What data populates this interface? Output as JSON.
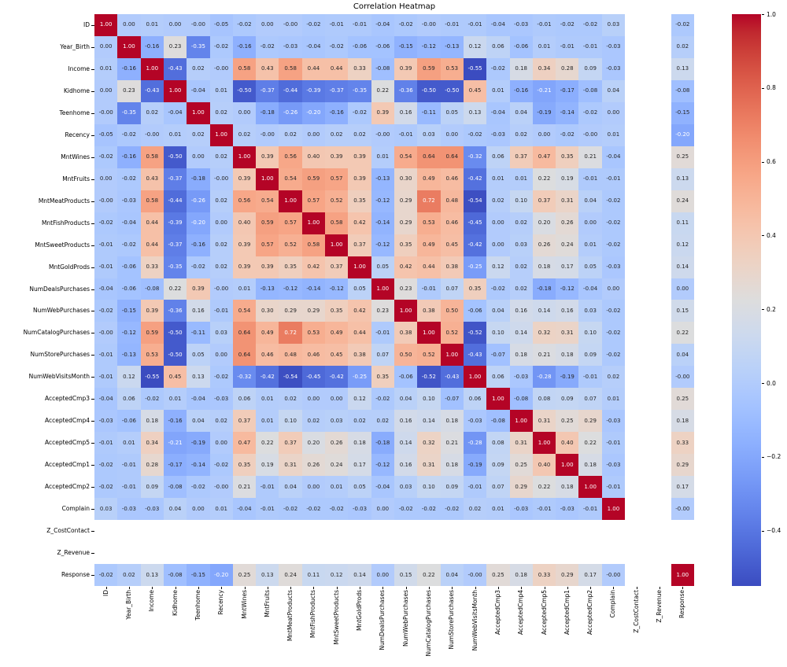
{
  "chart_data": {
    "type": "heatmap",
    "title": "Correlation Heatmap",
    "cell_format": ".2f",
    "categories": [
      "ID",
      "Year_Birth",
      "Income",
      "Kidhome",
      "Teenhome",
      "Recency",
      "MntWines",
      "MntFruits",
      "MntMeatProducts",
      "MntFishProducts",
      "MntSweetProducts",
      "MntGoldProds",
      "NumDealsPurchases",
      "NumWebPurchases",
      "NumCatalogPurchases",
      "NumStorePurchases",
      "NumWebVisitsMonth",
      "AcceptedCmp3",
      "AcceptedCmp4",
      "AcceptedCmp5",
      "AcceptedCmp1",
      "AcceptedCmp2",
      "Complain",
      "Z_CostContact",
      "Z_Revenue",
      "Response"
    ],
    "empty_rows": [
      "Z_CostContact",
      "Z_Revenue"
    ],
    "values": [
      [
        "1.00",
        "0.00",
        "0.01",
        "0.00",
        "-0.00",
        "-0.05",
        "-0.02",
        "0.00",
        "-0.00",
        "-0.02",
        "-0.01",
        "-0.01",
        "-0.04",
        "-0.02",
        "-0.00",
        "-0.01",
        "-0.01",
        "-0.04",
        "-0.03",
        "-0.01",
        "-0.02",
        "-0.02",
        "0.03",
        null,
        null,
        "-0.02"
      ],
      [
        "0.00",
        "1.00",
        "-0.16",
        "0.23",
        "-0.35",
        "-0.02",
        "-0.16",
        "-0.02",
        "-0.03",
        "-0.04",
        "-0.02",
        "-0.06",
        "-0.06",
        "-0.15",
        "-0.12",
        "-0.13",
        "0.12",
        "0.06",
        "-0.06",
        "0.01",
        "-0.01",
        "-0.01",
        "-0.03",
        null,
        null,
        "0.02"
      ],
      [
        "0.01",
        "-0.16",
        "1.00",
        "-0.43",
        "0.02",
        "-0.00",
        "0.58",
        "0.43",
        "0.58",
        "0.44",
        "0.44",
        "0.33",
        "-0.08",
        "0.39",
        "0.59",
        "0.53",
        "-0.55",
        "-0.02",
        "0.18",
        "0.34",
        "0.28",
        "0.09",
        "-0.03",
        null,
        null,
        "0.13"
      ],
      [
        "0.00",
        "0.23",
        "-0.43",
        "1.00",
        "-0.04",
        "0.01",
        "-0.50",
        "-0.37",
        "-0.44",
        "-0.39",
        "-0.37",
        "-0.35",
        "0.22",
        "-0.36",
        "-0.50",
        "-0.50",
        "0.45",
        "0.01",
        "-0.16",
        "-0.21",
        "-0.17",
        "-0.08",
        "0.04",
        null,
        null,
        "-0.08"
      ],
      [
        "-0.00",
        "-0.35",
        "0.02",
        "-0.04",
        "1.00",
        "0.02",
        "0.00",
        "-0.18",
        "-0.26",
        "-0.20",
        "-0.16",
        "-0.02",
        "0.39",
        "0.16",
        "-0.11",
        "0.05",
        "0.13",
        "-0.04",
        "0.04",
        "-0.19",
        "-0.14",
        "-0.02",
        "0.00",
        null,
        null,
        "-0.15"
      ],
      [
        "-0.05",
        "-0.02",
        "-0.00",
        "0.01",
        "0.02",
        "1.00",
        "0.02",
        "-0.00",
        "0.02",
        "0.00",
        "0.02",
        "0.02",
        "-0.00",
        "-0.01",
        "0.03",
        "0.00",
        "-0.02",
        "-0.03",
        "0.02",
        "0.00",
        "-0.02",
        "-0.00",
        "0.01",
        null,
        null,
        "-0.20"
      ],
      [
        "-0.02",
        "-0.16",
        "0.58",
        "-0.50",
        "0.00",
        "0.02",
        "1.00",
        "0.39",
        "0.56",
        "0.40",
        "0.39",
        "0.39",
        "0.01",
        "0.54",
        "0.64",
        "0.64",
        "-0.32",
        "0.06",
        "0.37",
        "0.47",
        "0.35",
        "0.21",
        "-0.04",
        null,
        null,
        "0.25"
      ],
      [
        "0.00",
        "-0.02",
        "0.43",
        "-0.37",
        "-0.18",
        "-0.00",
        "0.39",
        "1.00",
        "0.54",
        "0.59",
        "0.57",
        "0.39",
        "-0.13",
        "0.30",
        "0.49",
        "0.46",
        "-0.42",
        "0.01",
        "0.01",
        "0.22",
        "0.19",
        "-0.01",
        "-0.01",
        null,
        null,
        "0.13"
      ],
      [
        "-0.00",
        "-0.03",
        "0.58",
        "-0.44",
        "-0.26",
        "0.02",
        "0.56",
        "0.54",
        "1.00",
        "0.57",
        "0.52",
        "0.35",
        "-0.12",
        "0.29",
        "0.72",
        "0.48",
        "-0.54",
        "0.02",
        "0.10",
        "0.37",
        "0.31",
        "0.04",
        "-0.02",
        null,
        null,
        "0.24"
      ],
      [
        "-0.02",
        "-0.04",
        "0.44",
        "-0.39",
        "-0.20",
        "0.00",
        "0.40",
        "0.59",
        "0.57",
        "1.00",
        "0.58",
        "0.42",
        "-0.14",
        "0.29",
        "0.53",
        "0.46",
        "-0.45",
        "0.00",
        "0.02",
        "0.20",
        "0.26",
        "0.00",
        "-0.02",
        null,
        null,
        "0.11"
      ],
      [
        "-0.01",
        "-0.02",
        "0.44",
        "-0.37",
        "-0.16",
        "0.02",
        "0.39",
        "0.57",
        "0.52",
        "0.58",
        "1.00",
        "0.37",
        "-0.12",
        "0.35",
        "0.49",
        "0.45",
        "-0.42",
        "0.00",
        "0.03",
        "0.26",
        "0.24",
        "0.01",
        "-0.02",
        null,
        null,
        "0.12"
      ],
      [
        "-0.01",
        "-0.06",
        "0.33",
        "-0.35",
        "-0.02",
        "0.02",
        "0.39",
        "0.39",
        "0.35",
        "0.42",
        "0.37",
        "1.00",
        "0.05",
        "0.42",
        "0.44",
        "0.38",
        "-0.25",
        "0.12",
        "0.02",
        "0.18",
        "0.17",
        "0.05",
        "-0.03",
        null,
        null,
        "0.14"
      ],
      [
        "-0.04",
        "-0.06",
        "-0.08",
        "0.22",
        "0.39",
        "-0.00",
        "0.01",
        "-0.13",
        "-0.12",
        "-0.14",
        "-0.12",
        "0.05",
        "1.00",
        "0.23",
        "-0.01",
        "0.07",
        "0.35",
        "-0.02",
        "0.02",
        "-0.18",
        "-0.12",
        "-0.04",
        "0.00",
        null,
        null,
        "0.00"
      ],
      [
        "-0.02",
        "-0.15",
        "0.39",
        "-0.36",
        "0.16",
        "-0.01",
        "0.54",
        "0.30",
        "0.29",
        "0.29",
        "0.35",
        "0.42",
        "0.23",
        "1.00",
        "0.38",
        "0.50",
        "-0.06",
        "0.04",
        "0.16",
        "0.14",
        "0.16",
        "0.03",
        "-0.02",
        null,
        null,
        "0.15"
      ],
      [
        "-0.00",
        "-0.12",
        "0.59",
        "-0.50",
        "-0.11",
        "0.03",
        "0.64",
        "0.49",
        "0.72",
        "0.53",
        "0.49",
        "0.44",
        "-0.01",
        "0.38",
        "1.00",
        "0.52",
        "-0.52",
        "0.10",
        "0.14",
        "0.32",
        "0.31",
        "0.10",
        "-0.02",
        null,
        null,
        "0.22"
      ],
      [
        "-0.01",
        "-0.13",
        "0.53",
        "-0.50",
        "0.05",
        "0.00",
        "0.64",
        "0.46",
        "0.48",
        "0.46",
        "0.45",
        "0.38",
        "0.07",
        "0.50",
        "0.52",
        "1.00",
        "-0.43",
        "-0.07",
        "0.18",
        "0.21",
        "0.18",
        "0.09",
        "-0.02",
        null,
        null,
        "0.04"
      ],
      [
        "-0.01",
        "0.12",
        "-0.55",
        "0.45",
        "0.13",
        "-0.02",
        "-0.32",
        "-0.42",
        "-0.54",
        "-0.45",
        "-0.42",
        "-0.25",
        "0.35",
        "-0.06",
        "-0.52",
        "-0.43",
        "1.00",
        "0.06",
        "-0.03",
        "-0.28",
        "-0.19",
        "-0.01",
        "0.02",
        null,
        null,
        "-0.00"
      ],
      [
        "-0.04",
        "0.06",
        "-0.02",
        "0.01",
        "-0.04",
        "-0.03",
        "0.06",
        "0.01",
        "0.02",
        "0.00",
        "0.00",
        "0.12",
        "-0.02",
        "0.04",
        "0.10",
        "-0.07",
        "0.06",
        "1.00",
        "-0.08",
        "0.08",
        "0.09",
        "0.07",
        "0.01",
        null,
        null,
        "0.25"
      ],
      [
        "-0.03",
        "-0.06",
        "0.18",
        "-0.16",
        "0.04",
        "0.02",
        "0.37",
        "0.01",
        "0.10",
        "0.02",
        "0.03",
        "0.02",
        "0.02",
        "0.16",
        "0.14",
        "0.18",
        "-0.03",
        "-0.08",
        "1.00",
        "0.31",
        "0.25",
        "0.29",
        "-0.03",
        null,
        null,
        "0.18"
      ],
      [
        "-0.01",
        "0.01",
        "0.34",
        "-0.21",
        "-0.19",
        "0.00",
        "0.47",
        "0.22",
        "0.37",
        "0.20",
        "0.26",
        "0.18",
        "-0.18",
        "0.14",
        "0.32",
        "0.21",
        "-0.28",
        "0.08",
        "0.31",
        "1.00",
        "0.40",
        "0.22",
        "-0.01",
        null,
        null,
        "0.33"
      ],
      [
        "-0.02",
        "-0.01",
        "0.28",
        "-0.17",
        "-0.14",
        "-0.02",
        "0.35",
        "0.19",
        "0.31",
        "0.26",
        "0.24",
        "0.17",
        "-0.12",
        "0.16",
        "0.31",
        "0.18",
        "-0.19",
        "0.09",
        "0.25",
        "0.40",
        "1.00",
        "0.18",
        "-0.03",
        null,
        null,
        "0.29"
      ],
      [
        "-0.02",
        "-0.01",
        "0.09",
        "-0.08",
        "-0.02",
        "-0.00",
        "0.21",
        "-0.01",
        "0.04",
        "0.00",
        "0.01",
        "0.05",
        "-0.04",
        "0.03",
        "0.10",
        "0.09",
        "-0.01",
        "0.07",
        "0.29",
        "0.22",
        "0.18",
        "1.00",
        "-0.01",
        null,
        null,
        "0.17"
      ],
      [
        "0.03",
        "-0.03",
        "-0.03",
        "0.04",
        "0.00",
        "0.01",
        "-0.04",
        "-0.01",
        "-0.02",
        "-0.02",
        "-0.02",
        "-0.03",
        "0.00",
        "-0.02",
        "-0.02",
        "-0.02",
        "0.02",
        "0.01",
        "-0.03",
        "-0.01",
        "-0.03",
        "-0.01",
        "1.00",
        null,
        null,
        "-0.00"
      ],
      [
        null,
        null,
        null,
        null,
        null,
        null,
        null,
        null,
        null,
        null,
        null,
        null,
        null,
        null,
        null,
        null,
        null,
        null,
        null,
        null,
        null,
        null,
        null,
        null,
        null,
        null
      ],
      [
        null,
        null,
        null,
        null,
        null,
        null,
        null,
        null,
        null,
        null,
        null,
        null,
        null,
        null,
        null,
        null,
        null,
        null,
        null,
        null,
        null,
        null,
        null,
        null,
        null,
        null
      ],
      [
        "-0.02",
        "0.02",
        "0.13",
        "-0.08",
        "-0.15",
        "-0.20",
        "0.25",
        "0.13",
        "0.24",
        "0.11",
        "0.12",
        "0.14",
        "0.00",
        "0.15",
        "0.22",
        "0.04",
        "-0.00",
        "0.25",
        "0.18",
        "0.33",
        "0.29",
        "0.17",
        "-0.00",
        null,
        null,
        "1.00"
      ]
    ],
    "colormap": {
      "name": "coolwarm",
      "vmin": -0.55,
      "vmax": 1.0,
      "min_color": "#3b4cc0",
      "mid_color": "#dddddd",
      "max_color": "#b40426"
    },
    "colorbar_ticks": [
      {
        "label": "1.0",
        "v": 1.0
      },
      {
        "label": "0.8",
        "v": 0.8
      },
      {
        "label": "0.6",
        "v": 0.6
      },
      {
        "label": "0.4",
        "v": 0.4
      },
      {
        "label": "0.2",
        "v": 0.2
      },
      {
        "label": "0.0",
        "v": 0.0
      },
      {
        "label": "−0.2",
        "v": -0.2
      },
      {
        "label": "−0.4",
        "v": -0.4
      }
    ],
    "annotation_colors": {
      "dark": "#262626",
      "light": "#ffffff"
    },
    "legend_position": "right-colorbar",
    "grid": false
  }
}
